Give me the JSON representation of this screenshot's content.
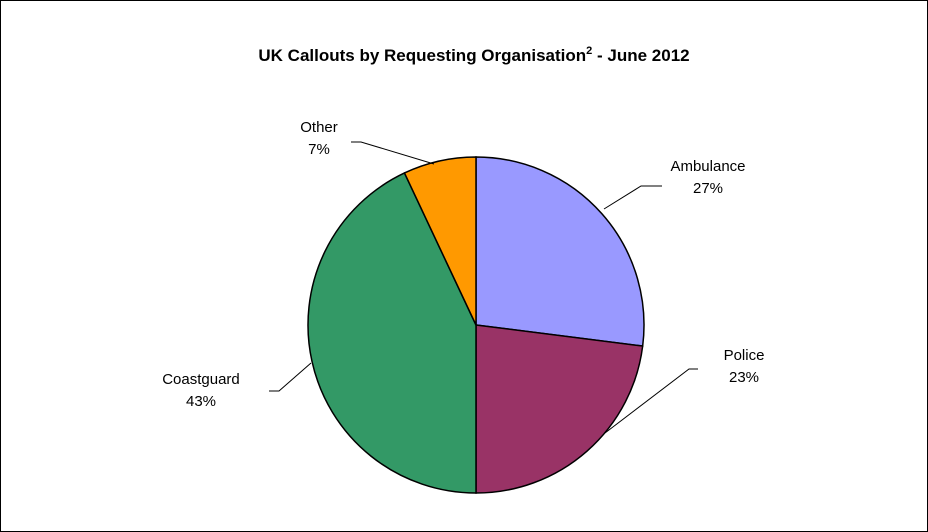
{
  "chart_data": {
    "type": "pie",
    "title": "UK Callouts by Requesting Organisation",
    "title_superscript": "2",
    "title_suffix": " - June 2012",
    "slices": [
      {
        "label": "Ambulance",
        "value": 27,
        "value_label": "27%",
        "color": "#9999ff"
      },
      {
        "label": "Police",
        "value": 23,
        "value_label": "23%",
        "color": "#993366"
      },
      {
        "label": "Coastguard",
        "value": 43,
        "value_label": "43%",
        "color": "#339966"
      },
      {
        "label": "Other",
        "value": 7,
        "value_label": "7%",
        "color": "#ff9900"
      }
    ],
    "legend": "none",
    "start_angle_deg": 0,
    "direction": "clockwise"
  }
}
